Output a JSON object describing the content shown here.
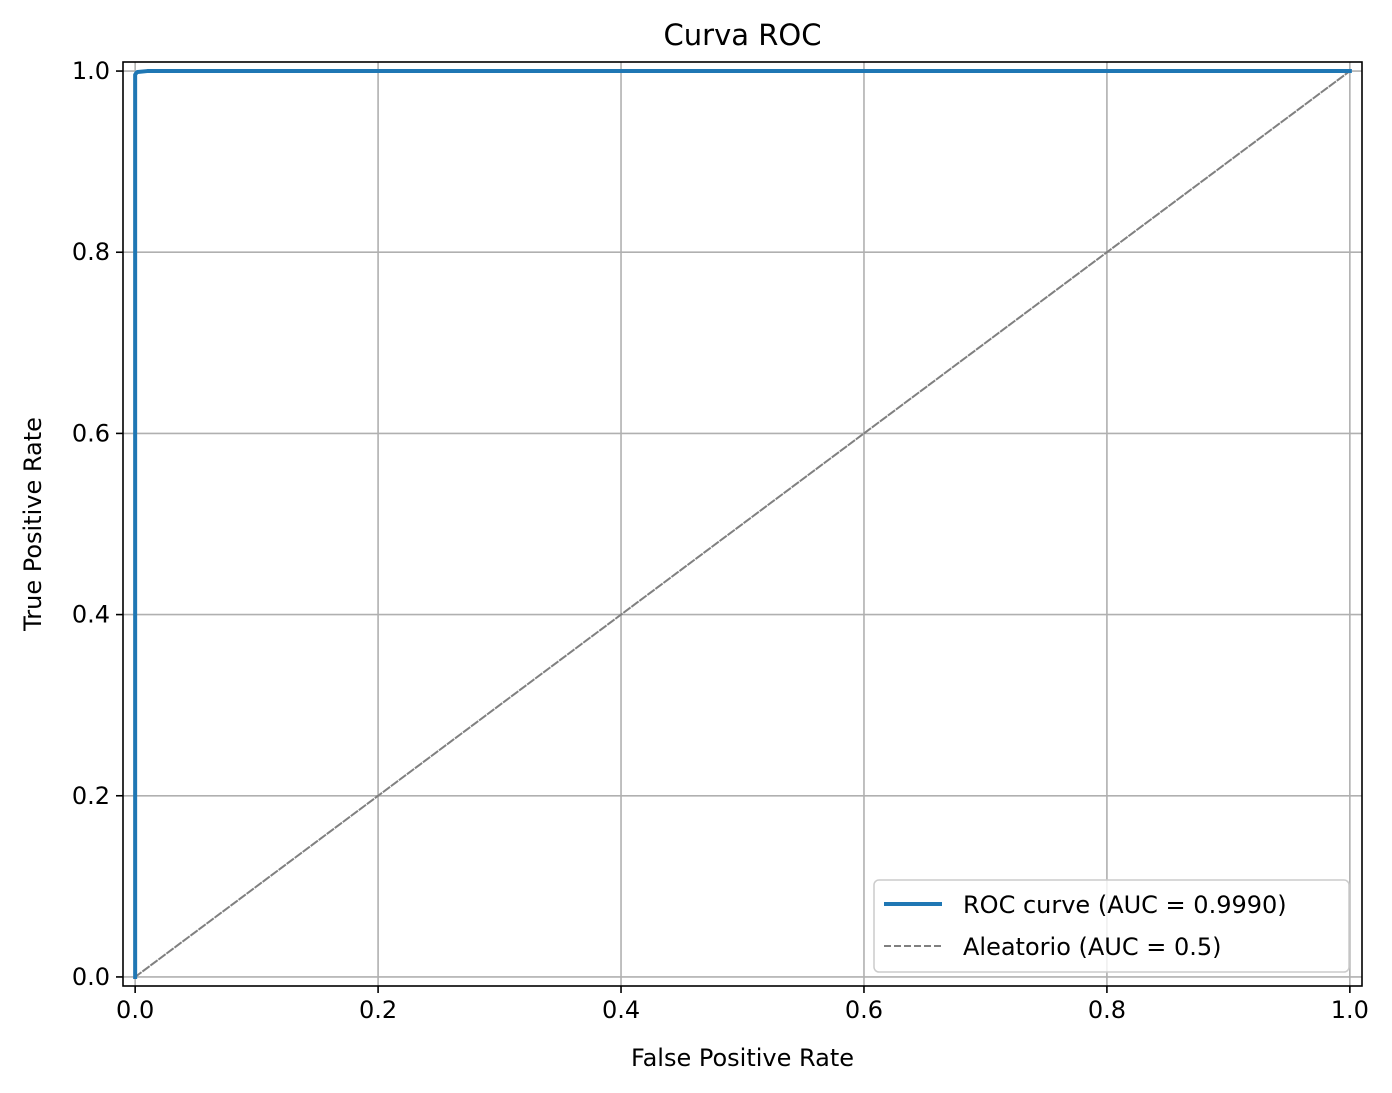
{
  "chart_data": {
    "type": "line",
    "title": "Curva ROC",
    "xlabel": "False Positive Rate",
    "ylabel": "True Positive Rate",
    "xlim": [
      -0.01,
      1.01
    ],
    "ylim": [
      -0.01,
      1.01
    ],
    "grid": true,
    "legend_position": "lower-right",
    "x_ticks": [
      0.0,
      0.2,
      0.4,
      0.6,
      0.8,
      1.0
    ],
    "y_ticks": [
      0.0,
      0.2,
      0.4,
      0.6,
      0.8,
      1.0
    ],
    "x_tick_labels": [
      "0.0",
      "0.2",
      "0.4",
      "0.6",
      "0.8",
      "1.0"
    ],
    "y_tick_labels": [
      "0.0",
      "0.2",
      "0.4",
      "0.6",
      "0.8",
      "1.0"
    ],
    "series": [
      {
        "name": "ROC curve (AUC = 0.9990)",
        "color": "#1f77b4",
        "style": "solid",
        "x": [
          0.0,
          0.0,
          0.0,
          0.001,
          0.002,
          0.01,
          1.0
        ],
        "y": [
          0.0,
          0.99,
          0.996,
          0.998,
          0.999,
          1.0,
          1.0
        ]
      },
      {
        "name": "Aleatorio (AUC = 0.5)",
        "color": "#808080",
        "style": "dashed",
        "x": [
          0.0,
          1.0
        ],
        "y": [
          0.0,
          1.0
        ]
      }
    ]
  }
}
